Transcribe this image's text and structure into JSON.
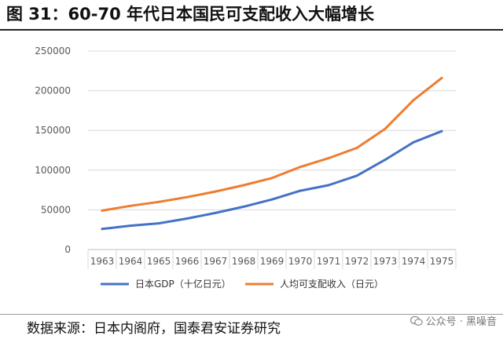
{
  "header": {
    "title": "图 31：60-70 年代日本国民可支配收入大幅增长"
  },
  "footer": {
    "source": "数据来源：日本内阁府，国泰君安证券研究",
    "watermark": "公众号 · 黑噪音"
  },
  "colors": {
    "gdp": "#4472C4",
    "income": "#ED7D31",
    "grid": "#D9D9D9"
  },
  "chart_data": {
    "type": "line",
    "title": "",
    "xlabel": "",
    "ylabel": "",
    "categories": [
      "1963",
      "1964",
      "1965",
      "1966",
      "1967",
      "1968",
      "1969",
      "1970",
      "1971",
      "1972",
      "1973",
      "1974",
      "1975"
    ],
    "y_ticks": [
      "0",
      "50000",
      "100000",
      "150000",
      "200000",
      "250000"
    ],
    "ylim": [
      0,
      250000
    ],
    "grid": true,
    "legend_position": "bottom",
    "series": [
      {
        "name": "日本GDP（十亿日元）",
        "color": "#4472C4",
        "values": [
          26000,
          30000,
          33000,
          39000,
          46000,
          54000,
          63000,
          74000,
          81000,
          93000,
          113000,
          135000,
          149000
        ]
      },
      {
        "name": "人均可支配收入（日元）",
        "color": "#ED7D31",
        "values": [
          49000,
          55000,
          60000,
          66000,
          73000,
          81000,
          90000,
          104000,
          115000,
          128000,
          152000,
          188000,
          216000
        ]
      }
    ]
  }
}
